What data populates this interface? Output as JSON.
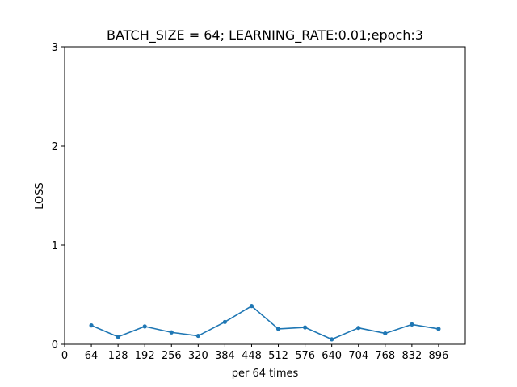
{
  "chart_data": {
    "type": "line",
    "title": "BATCH_SIZE = 64; LEARNING_RATE:0.01;epoch:3",
    "xlabel": "per 64 times",
    "ylabel": "LOSS",
    "xlim": [
      0,
      960
    ],
    "ylim": [
      0,
      3
    ],
    "xticks": [
      0,
      64,
      128,
      192,
      256,
      320,
      384,
      448,
      512,
      576,
      640,
      704,
      768,
      832,
      896
    ],
    "yticks": [
      0,
      1,
      2,
      3
    ],
    "grid": false,
    "color": "#1f77b4",
    "series": [
      {
        "x": [
          64,
          128,
          192,
          256,
          320,
          384,
          448,
          512,
          576,
          640,
          704,
          768,
          832,
          896
        ],
        "y": [
          0.19,
          0.075,
          0.18,
          0.12,
          0.085,
          0.225,
          0.385,
          0.155,
          0.17,
          0.05,
          0.165,
          0.11,
          0.2,
          0.155
        ]
      }
    ]
  }
}
